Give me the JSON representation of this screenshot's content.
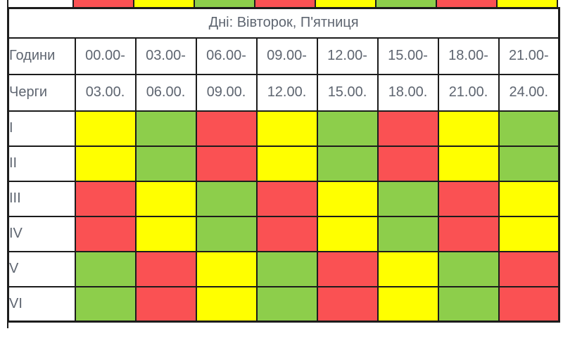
{
  "palette": {
    "red": "#FA5153",
    "yellow": "#FFFF00",
    "green": "#8DCE4B",
    "white": "#FFFFFF"
  },
  "previous_table_strip": {
    "colors": [
      "red",
      "yellow",
      "green",
      "red",
      "yellow",
      "green",
      "red",
      "yellow"
    ]
  },
  "schedule": {
    "title": "Дні: Вівторок, П'ятниця",
    "hours_label": "Години",
    "queues_label": "Черги",
    "hour_starts": [
      "00.00-",
      "03.00-",
      "06.00-",
      "09.00-",
      "12.00-",
      "15.00-",
      "18.00-",
      "21.00-"
    ],
    "hour_ends": [
      "03.00.",
      "06.00.",
      "09.00.",
      "12.00.",
      "15.00.",
      "18.00.",
      "21.00.",
      "24.00."
    ],
    "rows": [
      {
        "label": "I",
        "colors": [
          "yellow",
          "green",
          "red",
          "yellow",
          "green",
          "red",
          "yellow",
          "green"
        ]
      },
      {
        "label": "II",
        "colors": [
          "yellow",
          "green",
          "red",
          "yellow",
          "green",
          "red",
          "yellow",
          "green"
        ]
      },
      {
        "label": "III",
        "colors": [
          "red",
          "yellow",
          "green",
          "red",
          "yellow",
          "green",
          "red",
          "yellow"
        ]
      },
      {
        "label": "IV",
        "colors": [
          "red",
          "yellow",
          "green",
          "red",
          "yellow",
          "green",
          "red",
          "yellow"
        ]
      },
      {
        "label": "V",
        "colors": [
          "green",
          "red",
          "yellow",
          "green",
          "red",
          "yellow",
          "green",
          "red"
        ]
      },
      {
        "label": "VI",
        "colors": [
          "green",
          "red",
          "yellow",
          "green",
          "red",
          "yellow",
          "green",
          "red"
        ]
      }
    ]
  },
  "chart_data": {
    "type": "heatmap",
    "title": "Дні: Вівторок, П'ятниця",
    "x_slot_starts": [
      "00.00-",
      "03.00-",
      "06.00-",
      "09.00-",
      "12.00-",
      "15.00-",
      "18.00-",
      "21.00-"
    ],
    "x_slot_ends": [
      "03.00.",
      "06.00.",
      "09.00.",
      "12.00.",
      "15.00.",
      "18.00.",
      "21.00.",
      "24.00."
    ],
    "y_categories": [
      "I",
      "II",
      "III",
      "IV",
      "V",
      "VI"
    ],
    "values": [
      [
        "yellow",
        "green",
        "red",
        "yellow",
        "green",
        "red",
        "yellow",
        "green"
      ],
      [
        "yellow",
        "green",
        "red",
        "yellow",
        "green",
        "red",
        "yellow",
        "green"
      ],
      [
        "red",
        "yellow",
        "green",
        "red",
        "yellow",
        "green",
        "red",
        "yellow"
      ],
      [
        "red",
        "yellow",
        "green",
        "red",
        "yellow",
        "green",
        "red",
        "yellow"
      ],
      [
        "green",
        "red",
        "yellow",
        "green",
        "red",
        "yellow",
        "green",
        "red"
      ],
      [
        "green",
        "red",
        "yellow",
        "green",
        "red",
        "yellow",
        "green",
        "red"
      ]
    ],
    "cell_colors": {
      "red": "#FA5153",
      "yellow": "#FFFF00",
      "green": "#8DCE4B"
    },
    "layout": "first column = queue label (Години/Черги header rows), 8 time-slot columns, grid lines on"
  }
}
